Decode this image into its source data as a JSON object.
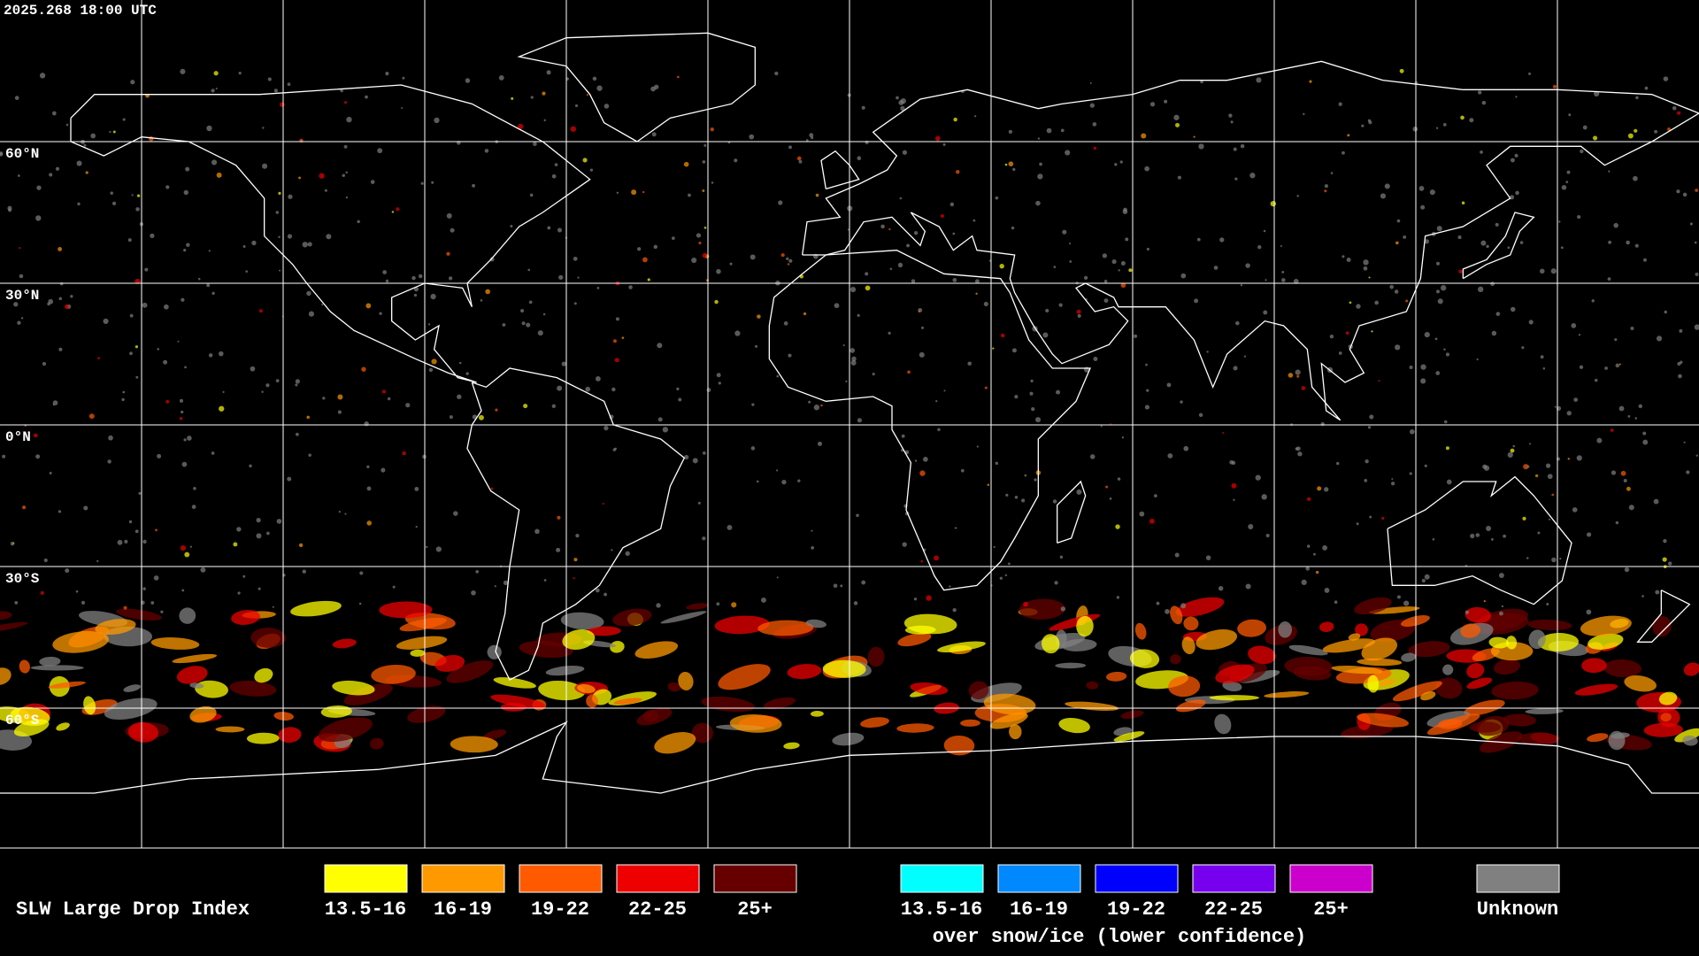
{
  "header": {
    "title": "2025.268 18:00 UTC"
  },
  "grid": {
    "lat_labels": [
      "60°N",
      "30°N",
      "0°N",
      "30°S",
      "60°S"
    ]
  },
  "legend": {
    "title": "SLW Large Drop Index",
    "groups": [
      {
        "items": [
          {
            "label": "13.5-16",
            "color": "#ffff00"
          },
          {
            "label": "16-19",
            "color": "#ff9900"
          },
          {
            "label": "19-22",
            "color": "#ff5a00"
          },
          {
            "label": "22-25",
            "color": "#ee0000"
          },
          {
            "label": "25+",
            "color": "#660000"
          }
        ]
      },
      {
        "items": [
          {
            "label": "13.5-16",
            "color": "#00ffff"
          },
          {
            "label": "16-19",
            "color": "#0088ff"
          },
          {
            "label": "19-22",
            "color": "#0000ff"
          },
          {
            "label": "22-25",
            "color": "#7700ee"
          },
          {
            "label": "25+",
            "color": "#cc00cc"
          }
        ]
      }
    ],
    "note": "over snow/ice (lower confidence)",
    "unknown": {
      "label": "Unknown",
      "color": "#808080"
    }
  }
}
